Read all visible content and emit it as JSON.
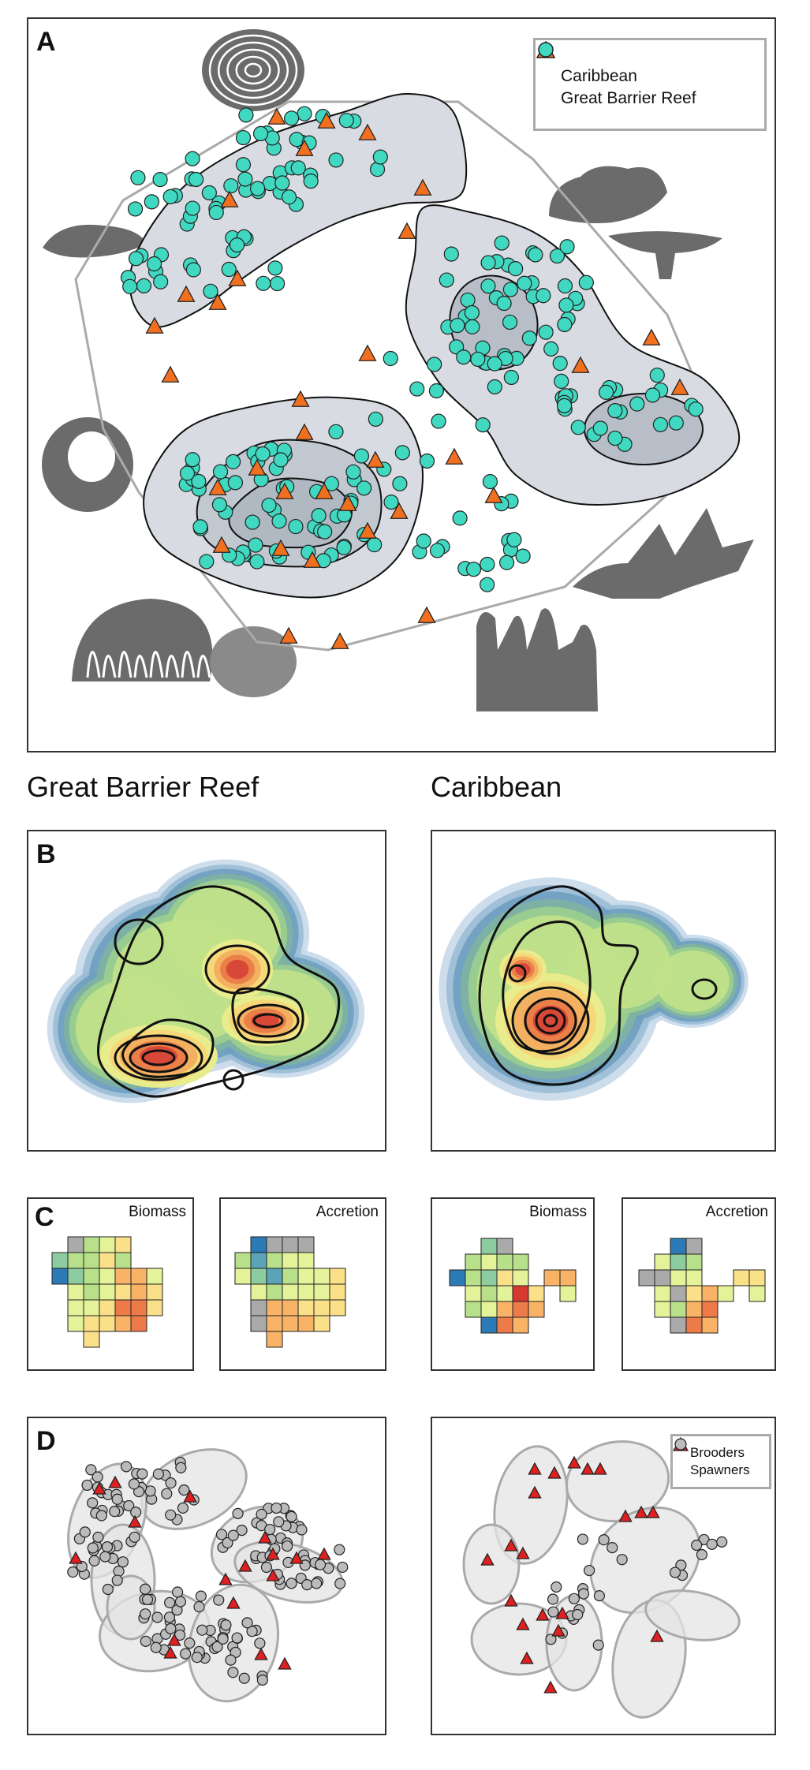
{
  "panels": {
    "a": {
      "letter": "A"
    },
    "b": {
      "letter": "B"
    },
    "c": {
      "letter": "C"
    },
    "d": {
      "letter": "D"
    }
  },
  "columns": {
    "gbr_title": "Great Barrier Reef",
    "carib_title": "Caribbean"
  },
  "legend_a": {
    "caribbean": "Caribbean",
    "gbr": "Great Barrier Reef"
  },
  "legend_d": {
    "brooders": "Brooders",
    "spawners": "Spawners"
  },
  "heatmaps": {
    "gbr_biomass": "Biomass",
    "gbr_accretion": "Accretion",
    "carib_biomass": "Biomass",
    "carib_accretion": "Accretion"
  },
  "colors": {
    "caribbean_marker": "#f07020",
    "gbr_marker": "#40d8c0",
    "brooder_marker": "#e02020",
    "spawner_marker": "#bbbbbb",
    "hull_line": "#aaaaaa",
    "density_fill": "#d8dce2",
    "silhouette": "#6b6b6b"
  },
  "icons": [
    "coral-rose-icon",
    "coral-branching-icon",
    "coral-table-icon",
    "coral-plate-icon",
    "coral-cup-icon",
    "coral-staghorn-icon",
    "coral-brain-icon",
    "coral-columnar-icon"
  ]
}
